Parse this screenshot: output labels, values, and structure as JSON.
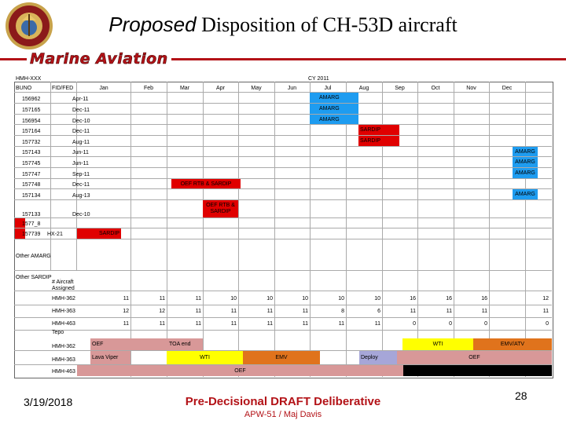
{
  "title": {
    "italic_part": "Proposed",
    "rest": " Disposition of CH-53D aircraft"
  },
  "banner": {
    "text": "Marine Aviation"
  },
  "colors": {
    "amarg": "#1e9cf0",
    "sardip": "#e00000",
    "teal": "#00b0a8",
    "pink": "#d89898",
    "yellow": "#ffff00",
    "orange": "#e0731c",
    "lavender": "#a6a6d8",
    "black": "#000000",
    "brand_red": "#b31217"
  },
  "header": {
    "hmh": "HMH-XXX",
    "cy": "CY 2011",
    "buno": "BUNO",
    "fid": "FID/FED",
    "months": [
      "Jan",
      "Feb",
      "Mar",
      "Apr",
      "May",
      "Jun",
      "Jul",
      "Aug",
      "Sep",
      "Oct",
      "Nov",
      "Dec"
    ]
  },
  "aircraft": [
    {
      "buno": "156962",
      "fid": "Apr-11",
      "event": "AMARG",
      "color": "amarg"
    },
    {
      "buno": "157165",
      "fid": "Dec-11",
      "event": "AMARG",
      "color": "amarg"
    },
    {
      "buno": "156954",
      "fid": "Dec-10",
      "event": "AMARG",
      "color": "amarg"
    },
    {
      "buno": "157164",
      "fid": "Dec-11",
      "event": "SARDIP",
      "color": "sardip"
    },
    {
      "buno": "157732",
      "fid": "Aug-11",
      "event": "SARDIP",
      "color": "sardip"
    },
    {
      "buno": "157143",
      "fid": "Jun-11",
      "event": "AMARG",
      "color": "amarg"
    },
    {
      "buno": "157745",
      "fid": "Jun-11",
      "event": "AMARG",
      "color": "amarg"
    },
    {
      "buno": "157747",
      "fid": "Sep-11",
      "event": "AMARG",
      "color": "amarg"
    },
    {
      "buno": "157748",
      "fid": "Dec-11",
      "event": "OEF RTB & SARDIP",
      "color": "sardip",
      "event2": "AMARG"
    },
    {
      "buno": "157134",
      "fid": "Aug-13",
      "event": "AMARG",
      "color": "amarg"
    },
    {
      "buno": "157133",
      "fid": "Dec-10",
      "event": "OEF RTB & SARDIP",
      "color": "sardip"
    },
    {
      "buno": "1577_8",
      "fid": "",
      "event": "",
      "color": "sardip"
    },
    {
      "buno": "157739",
      "fid": "HX-21",
      "event": "SARDIP",
      "color": "sardip"
    }
  ],
  "other": {
    "amarg": "Other AMARG",
    "sardip": "Other SARDIP"
  },
  "assigned": {
    "label": "# Aircraft Assigned",
    "rows": [
      {
        "name": "HMH-362",
        "values": [
          "11",
          "11",
          "11",
          "10",
          "10",
          "10",
          "10",
          "10",
          "16",
          "16",
          "16",
          "12"
        ]
      },
      {
        "name": "HMH-363",
        "values": [
          "12",
          "12",
          "11",
          "11",
          "11",
          "11",
          "8",
          "6",
          "11",
          "11",
          "11",
          "11"
        ]
      },
      {
        "name": "HMH-463",
        "values": [
          "11",
          "11",
          "11",
          "11",
          "11",
          "11",
          "11",
          "11",
          "0",
          "0",
          "0",
          "0"
        ]
      }
    ]
  },
  "tempo": {
    "label": "Tepo",
    "rows": [
      {
        "name": "HMH-362",
        "segments": [
          "OEF",
          "TOA end",
          "WTI",
          "EMV/ATV"
        ]
      },
      {
        "name": "HMH-363",
        "segments": [
          "Lava Viper",
          "WTI",
          "EMV",
          "Deploy",
          "OEF"
        ]
      },
      {
        "name": "HMH-463",
        "segments": [
          "OEF"
        ]
      }
    ]
  },
  "footer": {
    "date": "3/19/2018",
    "main": "Pre-Decisional DRAFT Deliberative",
    "sub": "APW-51 / Maj Davis",
    "page": "28"
  }
}
